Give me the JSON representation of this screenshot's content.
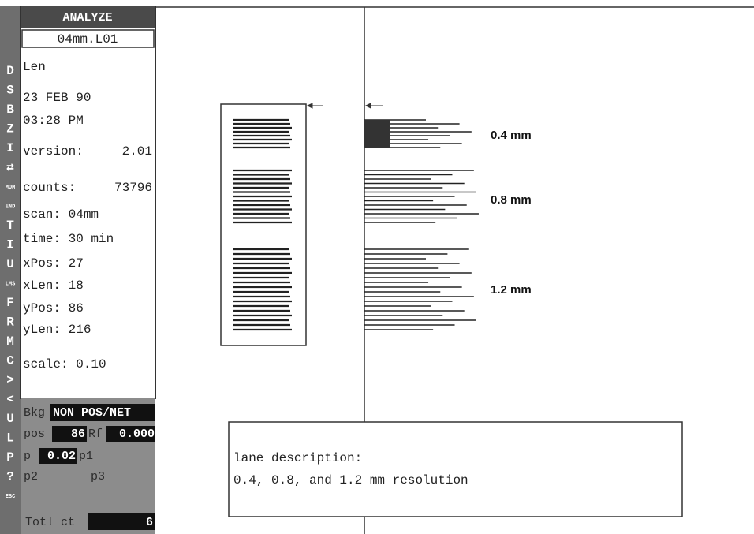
{
  "sidebar": {
    "title": "ANALYZE",
    "file": "04mm.L01",
    "menu": [
      "D",
      "S",
      "B",
      "Z",
      "I",
      "⇄",
      "MOM",
      "END",
      "T",
      "I",
      "U",
      "LMS",
      "F",
      "R",
      "M",
      "C",
      ">",
      "<",
      "U",
      "L",
      "P",
      "?",
      "ESC"
    ],
    "info": [
      [
        "Len"
      ],
      [
        "23 FEB 90"
      ],
      [
        "03:28 PM"
      ],
      [
        "version:",
        "2.01"
      ],
      [
        "counts:",
        "73796"
      ],
      [
        "scan: 04mm"
      ],
      [
        "time: 30 min"
      ],
      [
        "xPos: 27"
      ],
      [
        "xLen: 18"
      ],
      [
        "yPos: 86"
      ],
      [
        "yLen: 216"
      ],
      [
        "scale: 0.10"
      ]
    ]
  },
  "panel": {
    "bkg_label": "Bkg",
    "bkg_value": "NON POS/NET",
    "pos_label": "pos",
    "pos_value": "86",
    "rf_label": "Rf",
    "rf_value": "0.000",
    "p_label": "p",
    "p_value": "0.02",
    "p1_label": "p1",
    "p2_label": "p2",
    "p3_label": "p3",
    "total_label": "Totl ct",
    "total_value": "6"
  },
  "lanes": {
    "labels": [
      "0.4 mm",
      "0.8 mm",
      "1.2 mm"
    ]
  },
  "description": {
    "heading": "lane description:",
    "text": "0.4, 0.8, and 1.2 mm resolution"
  }
}
